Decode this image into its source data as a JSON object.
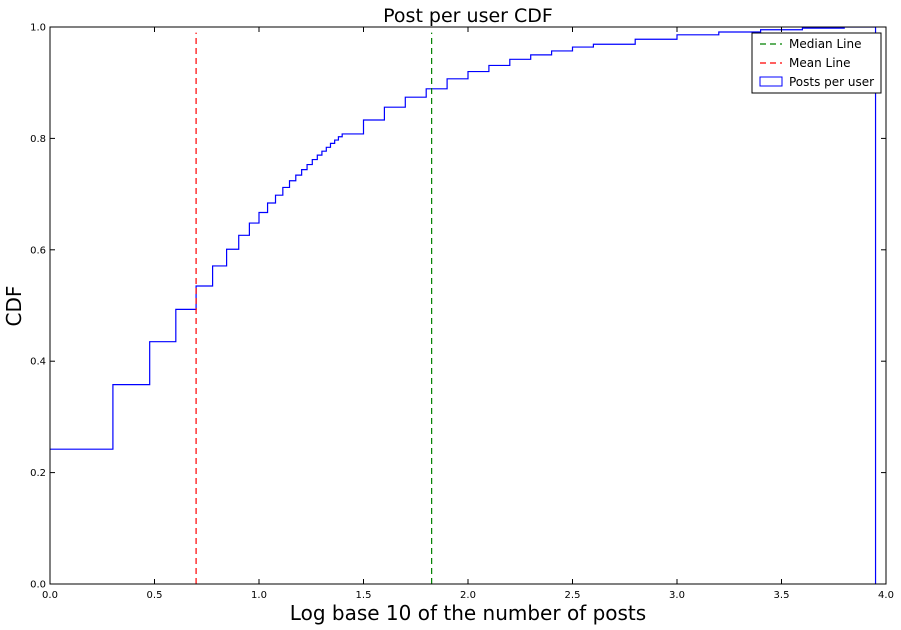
{
  "chart_data": {
    "type": "line",
    "title": "Post per user CDF",
    "xlabel": "Log base 10 of the number of posts",
    "ylabel": "CDF",
    "xlim": [
      0.0,
      4.0
    ],
    "ylim": [
      0.0,
      1.0
    ],
    "xticks": [
      "0.0",
      "0.5",
      "1.0",
      "1.5",
      "2.0",
      "2.5",
      "3.0",
      "3.5",
      "4.0"
    ],
    "yticks": [
      "0.0",
      "0.2",
      "0.4",
      "0.6",
      "0.8",
      "1.0"
    ],
    "grid": false,
    "legend_position": "top-right",
    "series": [
      {
        "name": "Posts per user",
        "color": "#0000ff",
        "style": "step",
        "x": [
          0.0,
          0.301,
          0.477,
          0.602,
          0.699,
          0.778,
          0.845,
          0.903,
          0.954,
          1.0,
          1.041,
          1.079,
          1.114,
          1.146,
          1.176,
          1.204,
          1.23,
          1.255,
          1.279,
          1.301,
          1.322,
          1.342,
          1.362,
          1.38,
          1.398,
          1.5,
          1.6,
          1.7,
          1.8,
          1.9,
          2.0,
          2.1,
          2.2,
          2.3,
          2.4,
          2.5,
          2.6,
          2.8,
          3.0,
          3.2,
          3.4,
          3.6,
          3.8,
          3.95,
          3.95
        ],
        "y": [
          0.242,
          0.358,
          0.435,
          0.493,
          0.535,
          0.571,
          0.601,
          0.626,
          0.648,
          0.667,
          0.684,
          0.698,
          0.712,
          0.724,
          0.734,
          0.744,
          0.753,
          0.762,
          0.77,
          0.777,
          0.784,
          0.791,
          0.797,
          0.803,
          0.808,
          0.833,
          0.856,
          0.874,
          0.889,
          0.907,
          0.92,
          0.931,
          0.942,
          0.95,
          0.957,
          0.964,
          0.969,
          0.978,
          0.986,
          0.991,
          0.995,
          0.998,
          1.0,
          1.0,
          0.0
        ]
      },
      {
        "name": "Median Line",
        "color": "#008000",
        "style": "dashed",
        "x": [
          1.826,
          1.826
        ],
        "y": [
          0.0,
          0.99
        ]
      },
      {
        "name": "Mean Line",
        "color": "#ff0000",
        "style": "dashed",
        "x": [
          0.699,
          0.699
        ],
        "y": [
          0.0,
          0.99
        ]
      }
    ],
    "legend_order": [
      "Median Line",
      "Mean Line",
      "Posts per user"
    ]
  }
}
